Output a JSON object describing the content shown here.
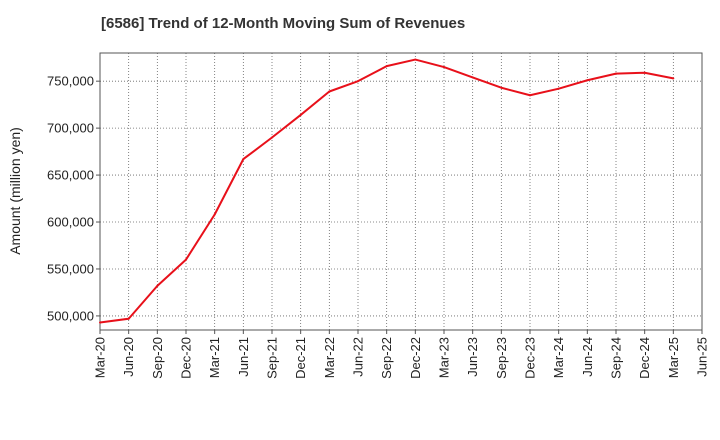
{
  "chart_data": {
    "type": "line",
    "title": "[6586]  Trend of 12-Month Moving Sum of Revenues",
    "xlabel": "",
    "ylabel": "Amount (million yen)",
    "x_tick_labels": [
      "Mar-20",
      "Jun-20",
      "Sep-20",
      "Dec-20",
      "Mar-21",
      "Jun-21",
      "Sep-21",
      "Dec-21",
      "Mar-22",
      "Jun-22",
      "Sep-22",
      "Dec-22",
      "Mar-23",
      "Jun-23",
      "Sep-23",
      "Dec-23",
      "Mar-24",
      "Jun-24",
      "Sep-24",
      "Dec-24",
      "Mar-25",
      "Jun-25"
    ],
    "y_ticks": [
      500000,
      550000,
      600000,
      650000,
      700000,
      750000
    ],
    "y_tick_labels": [
      "500,000",
      "550,000",
      "600,000",
      "650,000",
      "700,000",
      "750,000"
    ],
    "ylim": [
      485000,
      780000
    ],
    "grid": true,
    "legend": "none",
    "series": [
      {
        "color": "#e8101a",
        "x": [
          "Mar-20",
          "Jun-20",
          "Sep-20",
          "Dec-20",
          "Mar-21",
          "Jun-21",
          "Sep-21",
          "Dec-21",
          "Mar-22",
          "Jun-22",
          "Sep-22",
          "Dec-22",
          "Mar-23",
          "Jun-23",
          "Sep-23",
          "Dec-23",
          "Mar-24",
          "Jun-24",
          "Sep-24",
          "Dec-24",
          "Mar-25"
        ],
        "values": [
          493000,
          497000,
          532000,
          560000,
          608000,
          667000,
          690000,
          714000,
          739000,
          750000,
          766000,
          773000,
          765000,
          754000,
          743000,
          735000,
          742000,
          751000,
          758000,
          759000,
          753000
        ]
      }
    ]
  }
}
